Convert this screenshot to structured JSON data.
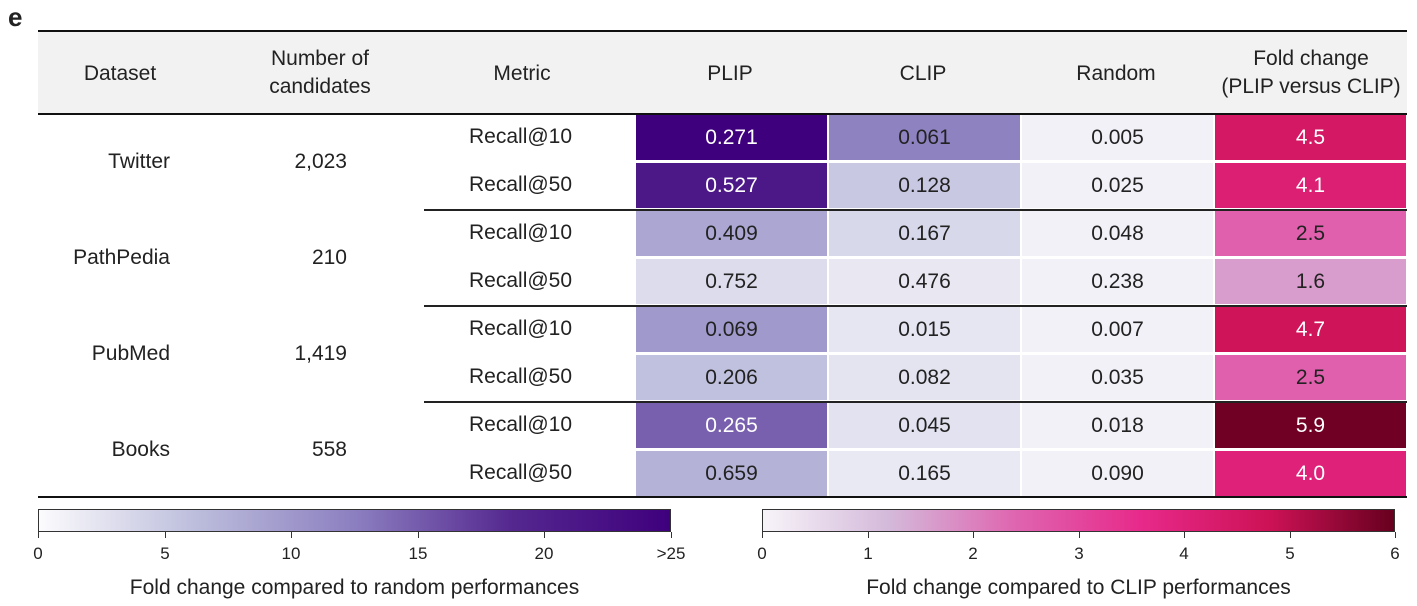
{
  "panel_label": "e",
  "headers": {
    "dataset": "Dataset",
    "candidates": [
      "Number of",
      "candidates"
    ],
    "metric": "Metric",
    "plip": "PLIP",
    "clip": "CLIP",
    "random": "Random",
    "fold": [
      "Fold change",
      "(PLIP versus CLIP)"
    ]
  },
  "chart_data": {
    "type": "table",
    "columns": [
      "Dataset",
      "Number of candidates",
      "Metric",
      "PLIP",
      "CLIP",
      "Random",
      "Fold change (PLIP versus CLIP)"
    ],
    "groups": [
      {
        "dataset": "Twitter",
        "candidates": "2,023",
        "rows": [
          {
            "metric": "Recall@10",
            "plip": "0.271",
            "clip": "0.061",
            "random": "0.005",
            "fold": "4.5"
          },
          {
            "metric": "Recall@50",
            "plip": "0.527",
            "clip": "0.128",
            "random": "0.025",
            "fold": "4.1"
          }
        ]
      },
      {
        "dataset": "PathPedia",
        "candidates": "210",
        "rows": [
          {
            "metric": "Recall@10",
            "plip": "0.409",
            "clip": "0.167",
            "random": "0.048",
            "fold": "2.5"
          },
          {
            "metric": "Recall@50",
            "plip": "0.752",
            "clip": "0.476",
            "random": "0.238",
            "fold": "1.6"
          }
        ]
      },
      {
        "dataset": "PubMed",
        "candidates": "1,419",
        "rows": [
          {
            "metric": "Recall@10",
            "plip": "0.069",
            "clip": "0.015",
            "random": "0.007",
            "fold": "4.7"
          },
          {
            "metric": "Recall@50",
            "plip": "0.206",
            "clip": "0.082",
            "random": "0.035",
            "fold": "2.5"
          }
        ]
      },
      {
        "dataset": "Books",
        "candidates": "558",
        "rows": [
          {
            "metric": "Recall@10",
            "plip": "0.265",
            "clip": "0.045",
            "random": "0.018",
            "fold": "5.9"
          },
          {
            "metric": "Recall@50",
            "plip": "0.659",
            "clip": "0.165",
            "random": "0.090",
            "fold": "4.0"
          }
        ]
      }
    ],
    "colorbars": [
      {
        "label": "Fold change compared to random performances",
        "ticks": [
          "0",
          "5",
          "10",
          "15",
          "20",
          ">25"
        ],
        "range": [
          0,
          25
        ],
        "colors": [
          "#fcfbfd",
          "#bcbddc",
          "#8c7fc0",
          "#54278f",
          "#3f007d"
        ]
      },
      {
        "label": "Fold change compared to CLIP performances",
        "ticks": [
          "0",
          "1",
          "2",
          "3",
          "4",
          "5",
          "6"
        ],
        "range": [
          0,
          6
        ],
        "colors": [
          "#f7f4f9",
          "#d4b9da",
          "#df65b0",
          "#e7298a",
          "#ce1256",
          "#67001f"
        ]
      }
    ]
  }
}
